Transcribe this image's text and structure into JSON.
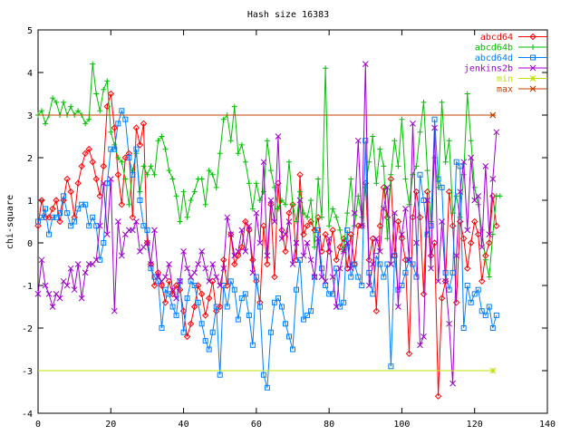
{
  "chart_data": {
    "type": "line",
    "title": "Hash size 16383",
    "xlabel": "",
    "ylabel": "chi-square",
    "xlim": [
      0,
      140
    ],
    "ylim": [
      -4,
      5
    ],
    "xticks": [
      0,
      20,
      40,
      60,
      80,
      100,
      120,
      140
    ],
    "yticks": [
      -4,
      -3,
      -2,
      -1,
      0,
      1,
      2,
      3,
      4,
      5
    ],
    "grid": false,
    "legend_position": "top-right",
    "series": [
      {
        "name": "abcd64",
        "color": "#ff0000",
        "marker": "diamond",
        "values": [
          0.4,
          1.0,
          0.6,
          0.6,
          0.8,
          1.0,
          0.5,
          1.0,
          1.5,
          1.2,
          0.6,
          1.4,
          1.8,
          2.1,
          2.2,
          1.9,
          1.5,
          1.1,
          1.8,
          3.2,
          3.5,
          2.7,
          1.6,
          0.9,
          2.0,
          2.1,
          0.6,
          2.7,
          2.3,
          2.8,
          0.0,
          -0.5,
          -1.0,
          -0.7,
          -1.0,
          -1.4,
          -0.9,
          -1.2,
          -1.0,
          -1.1,
          -1.6,
          -2.2,
          -1.9,
          -1.5,
          -1.0,
          -1.2,
          -1.7,
          -1.3,
          -0.9,
          -1.6,
          -1.5,
          -0.4,
          -1.0,
          0.2,
          -0.5,
          -0.3,
          -0.1,
          0.5,
          0.3,
          -0.4,
          -0.9,
          -1.4,
          0.4,
          -0.5,
          0.9,
          -0.8,
          1.4,
          0.3,
          -0.2,
          0.7,
          0.9,
          -0.4,
          1.6,
          0.2,
          0.4,
          0.5,
          0.3,
          0.6,
          -0.2,
          0.2,
          -0.2,
          0.3,
          -0.4,
          -0.1,
          0.1,
          -0.6,
          0.2,
          -0.5,
          0.4,
          0.4,
          1.4,
          -0.4,
          0.1,
          -1.6,
          0.4,
          1.3,
          0.6,
          1.5,
          -0.3,
          0.5,
          0.1,
          -0.4,
          -2.6,
          0.6,
          1.2,
          0.6,
          -1.2,
          1.2,
          -0.3,
          0.0,
          -3.6,
          -1.3,
          -0.9,
          1.2,
          0.4,
          -1.4,
          0.5,
          0.1,
          -0.6,
          0.0,
          0.5,
          0.2,
          -0.9,
          -0.3,
          0.0,
          1.1,
          0.4
        ]
      },
      {
        "name": "abcd64b",
        "color": "#00c000",
        "marker": "plus",
        "values": [
          3.0,
          3.1,
          2.8,
          3.0,
          3.4,
          3.3,
          3.0,
          3.3,
          3.0,
          3.2,
          3.0,
          3.1,
          3.0,
          2.8,
          2.9,
          4.2,
          3.5,
          3.1,
          3.6,
          3.8,
          2.6,
          2.3,
          2.0,
          1.9,
          1.5,
          0.9,
          1.7,
          2.1,
          1.2,
          1.8,
          1.6,
          1.8,
          1.6,
          2.4,
          2.5,
          2.2,
          1.7,
          1.5,
          1.1,
          0.5,
          1.2,
          0.6,
          1.0,
          1.2,
          1.5,
          1.5,
          0.9,
          1.7,
          1.6,
          1.3,
          2.1,
          2.9,
          3.0,
          2.4,
          3.2,
          2.1,
          2.3,
          1.9,
          1.4,
          0.8,
          1.4,
          1.0,
          1.2,
          2.4,
          1.7,
          1.3,
          0.8,
          1.0,
          0.9,
          1.9,
          0.9,
          0.5,
          1.2,
          0.7,
          0.6,
          1.0,
          -0.1,
          1.5,
          0.6,
          4.1,
          0.4,
          0.8,
          0.6,
          0.3,
          -0.2,
          0.7,
          1.5,
          0.4,
          1.1,
          0.6,
          1.3,
          1.9,
          2.5,
          1.4,
          2.2,
          1.8,
          0.1,
          1.6,
          2.4,
          1.8,
          2.9,
          1.5,
          0.9,
          1.6,
          1.8,
          2.6,
          3.3,
          1.7,
          0.5,
          2.0,
          1.3,
          3.3,
          1.9,
          2.4,
          0.7,
          1.1,
          0.6,
          1.6,
          3.5,
          2.4,
          1.3,
          0.9,
          0.3,
          -0.4,
          -0.8,
          0.2,
          1.1,
          1.1
        ]
      },
      {
        "name": "abcd64d",
        "color": "#0080ff",
        "marker": "square",
        "values": [
          0.5,
          0.6,
          0.8,
          0.2,
          0.6,
          0.6,
          0.7,
          1.1,
          0.7,
          0.4,
          0.5,
          0.8,
          0.9,
          0.9,
          0.4,
          0.6,
          0.4,
          -0.4,
          0.0,
          1.4,
          2.2,
          2.2,
          2.8,
          3.1,
          2.9,
          2.0,
          1.6,
          2.2,
          1.0,
          0.4,
          0.3,
          -0.6,
          -0.8,
          -0.9,
          -2.0,
          -1.1,
          -1.2,
          -1.5,
          -1.7,
          -0.9,
          -2.1,
          -1.3,
          -0.9,
          -1.0,
          -1.4,
          -1.9,
          -2.3,
          -2.5,
          -2.1,
          -1.5,
          -3.1,
          -1.0,
          -1.5,
          -0.9,
          -1.1,
          -1.8,
          -1.3,
          -1.2,
          -1.7,
          -2.4,
          -0.8,
          -1.5,
          -3.1,
          -3.4,
          -2.1,
          -1.4,
          -1.3,
          -1.5,
          -1.9,
          -2.2,
          -2.5,
          -1.1,
          -0.4,
          -1.8,
          -1.7,
          -1.6,
          -0.8,
          0.3,
          -0.6,
          -1.0,
          -1.2,
          -1.2,
          -0.6,
          -1.5,
          -1.4,
          0.3,
          -0.8,
          -0.5,
          -0.8,
          -1.0,
          2.4,
          -0.7,
          -1.2,
          -0.3,
          -0.5,
          -0.8,
          -0.5,
          -2.9,
          -0.3,
          -1.1,
          -1.0,
          -0.7,
          -0.4,
          -0.5,
          -0.8,
          1.6,
          1.0,
          0.2,
          0.4,
          2.9,
          1.5,
          1.3,
          -0.7,
          -1.1,
          -0.7,
          1.9,
          1.8,
          -2.0,
          -1.0,
          -1.4,
          -1.2,
          -1.1,
          -1.6,
          -1.7,
          -1.5,
          -2.0,
          -1.7
        ]
      },
      {
        "name": "jenkins2b",
        "color": "#a000d0",
        "marker": "cross",
        "values": [
          -1.2,
          -0.4,
          -1.0,
          -1.2,
          -1.5,
          -1.2,
          -1.3,
          -0.9,
          -1.0,
          -0.6,
          -1.1,
          -0.5,
          -1.3,
          -0.7,
          -0.5,
          -0.5,
          -0.4,
          0.4,
          1.4,
          0.2,
          1.5,
          -1.6,
          0.5,
          -0.3,
          0.2,
          0.3,
          0.3,
          0.5,
          -0.2,
          -0.1,
          0.0,
          -0.5,
          0.3,
          -0.8,
          -0.9,
          -0.8,
          -0.5,
          -1.1,
          -1.3,
          -0.9,
          -0.2,
          -0.6,
          -0.8,
          -0.7,
          -0.5,
          -0.2,
          -0.6,
          -0.9,
          -0.5,
          -0.8,
          -1.0,
          -0.6,
          0.6,
          0.2,
          -0.3,
          -0.2,
          0.3,
          -0.2,
          0.4,
          -0.7,
          0.7,
          0.0,
          1.9,
          -0.3,
          1.0,
          0.5,
          2.5,
          0.1,
          0.2,
          0.5,
          -0.5,
          0.0,
          1.0,
          -0.3,
          0.0,
          -0.4,
          -0.8,
          0.1,
          -0.8,
          -0.9,
          0.1,
          -0.8,
          -1.5,
          -0.6,
          -0.2,
          0.0,
          -0.6,
          0.7,
          2.4,
          0.4,
          4.2,
          -1.0,
          -0.5,
          0.1,
          -0.2,
          0.8,
          1.3,
          -0.5,
          0.7,
          -1.5,
          0.2,
          0.8,
          -0.4,
          2.8,
          0.0,
          -2.4,
          -2.2,
          1.0,
          -0.6,
          2.7,
          -0.9,
          0.5,
          -0.9,
          -1.9,
          -3.3,
          -0.3,
          1.2,
          1.9,
          0.3,
          2.0,
          1.0,
          1.1,
          -0.1,
          1.8,
          0.2,
          1.5,
          2.6
        ]
      },
      {
        "name": "min",
        "color": "#c0e000",
        "marker": "star",
        "constant": -3.0,
        "values": [
          -3.0,
          -3.0
        ]
      },
      {
        "name": "max",
        "color": "#c04000",
        "marker": "asterisk",
        "constant": 3.0,
        "values": [
          3.0,
          3.0
        ]
      }
    ]
  }
}
